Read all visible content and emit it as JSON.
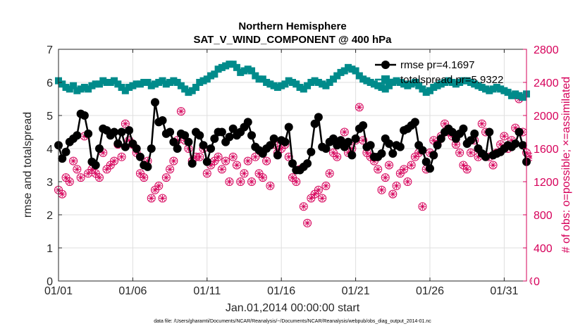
{
  "chart_data": {
    "type": "line",
    "title": "Northern Hemisphere",
    "subtitle": "SAT_V_WIND_COMPONENT @ 400 hPa",
    "xlabel": "Jan.01,2014 00:00:00 start",
    "ylabel_left": "rmse and totalspread",
    "ylabel_right": "# of obs: o=possible; ×=assimilated",
    "footnote": "data file: /Users/gharamti/Documents/NCAR/Reanalysis/~/Documents/NCAR/Reanalysis/webpub/obs_diag_output_2014-01.nc",
    "xlim": [
      0,
      31.5
    ],
    "ylim_left": [
      0,
      7
    ],
    "ylim_right": [
      0,
      2800
    ],
    "grid": true,
    "legend_position": "top-right",
    "x_ticks": [
      {
        "value": 0,
        "label": "01/01"
      },
      {
        "value": 5,
        "label": "01/06"
      },
      {
        "value": 10,
        "label": "01/11"
      },
      {
        "value": 15,
        "label": "01/16"
      },
      {
        "value": 20,
        "label": "01/21"
      },
      {
        "value": 25,
        "label": "01/26"
      },
      {
        "value": 30,
        "label": "01/31"
      }
    ],
    "y_ticks_left": [
      0,
      1,
      2,
      3,
      4,
      5,
      6,
      7
    ],
    "y_ticks_right": [
      0,
      400,
      800,
      1200,
      1600,
      2000,
      2400,
      2800
    ],
    "colors": {
      "rmse": "#000000",
      "totalspread": "#008b8b",
      "obs": "#d6005a"
    },
    "series": [
      {
        "name": "rmse pr=4.1697",
        "axis": "left",
        "marker": "circle",
        "step": 0.25,
        "values": [
          4.1,
          3.7,
          3.9,
          4.2,
          4.3,
          4.4,
          5.05,
          5.0,
          4.45,
          3.6,
          3.5,
          4.0,
          4.6,
          4.55,
          4.4,
          4.5,
          4.15,
          4.5,
          4.05,
          4.55,
          4.15,
          4.0,
          3.75,
          3.5,
          3.45,
          4.0,
          5.4,
          4.8,
          4.85,
          4.45,
          4.5,
          4.2,
          4.0,
          4.45,
          4.4,
          4.2,
          3.55,
          4.5,
          4.4,
          4.1,
          3.6,
          4.0,
          4.3,
          4.5,
          4.5,
          4.2,
          4.35,
          4.6,
          4.4,
          4.5,
          4.65,
          4.8,
          4.4,
          4.05,
          3.95,
          3.85,
          4.0,
          4.1,
          4.3,
          3.8,
          4.25,
          4.2,
          4.65,
          3.55,
          3.35,
          3.35,
          3.45,
          3.55,
          3.9,
          4.75,
          4.95,
          4.05,
          4.0,
          4.2,
          4.3,
          4.1,
          4.25,
          4.05,
          4.2,
          3.8,
          4.3,
          4.6,
          4.7,
          4.05,
          4.1,
          3.75,
          3.75,
          3.85,
          4.3,
          4.15,
          3.85,
          4.1,
          4.05,
          4.55,
          4.6,
          4.7,
          4.8,
          4.1,
          3.95,
          3.6,
          3.4,
          3.8,
          4.1,
          4.3,
          4.5,
          4.6,
          4.5,
          4.3,
          4.45,
          4.6,
          4.15,
          4.25,
          4.45,
          4.0,
          3.85,
          3.75,
          4.5,
          3.8,
          3.85,
          3.9,
          4.0,
          4.1,
          4.05,
          4.15,
          4.5,
          4.1,
          3.6
        ]
      },
      {
        "name": "totalspread pr=5.9322",
        "axis": "left",
        "marker": "square",
        "step": 0.25,
        "values": [
          6.05,
          5.95,
          5.85,
          5.8,
          5.9,
          5.75,
          5.8,
          5.85,
          5.8,
          5.9,
          5.95,
          5.95,
          6.05,
          6.0,
          6.0,
          6.05,
          5.95,
          5.85,
          5.75,
          5.85,
          5.9,
          5.95,
          5.95,
          6.0,
          6.0,
          5.9,
          5.95,
          6.0,
          6.05,
          5.95,
          6.0,
          6.05,
          6.0,
          5.9,
          5.8,
          5.7,
          5.75,
          5.85,
          6.0,
          6.05,
          6.1,
          6.2,
          6.25,
          6.4,
          6.45,
          6.5,
          6.55,
          6.55,
          6.45,
          6.3,
          6.35,
          6.4,
          6.35,
          6.2,
          6.1,
          6.1,
          6.0,
          5.95,
          5.9,
          5.85,
          5.9,
          5.95,
          6.05,
          6.0,
          5.95,
          5.85,
          5.8,
          5.9,
          6.0,
          6.05,
          6.0,
          5.95,
          5.9,
          6.0,
          6.1,
          6.2,
          6.3,
          6.35,
          6.45,
          6.4,
          6.35,
          6.2,
          6.1,
          6.05,
          6.0,
          5.95,
          5.9,
          5.85,
          5.8,
          5.9,
          6.0,
          6.05,
          6.0,
          5.95,
          5.9,
          5.95,
          6.0,
          5.9,
          5.8,
          5.7,
          5.75,
          5.85,
          5.9,
          5.95,
          6.0,
          6.05,
          6.0,
          5.95,
          6.0,
          6.05,
          6.05,
          6.0,
          5.95,
          5.9,
          5.85,
          5.8,
          5.75,
          5.8,
          5.85,
          5.8,
          5.75,
          5.7,
          5.6,
          5.65,
          5.6,
          5.55,
          5.65
        ]
      },
      {
        "name": "# of obs (possible / assimilated)",
        "axis": "right",
        "marker": "circle-star",
        "step": 0.25,
        "values": [
          1100,
          1050,
          1250,
          1200,
          1450,
          1350,
          1250,
          1750,
          1300,
          1350,
          1300,
          1250,
          1550,
          1350,
          1400,
          1450,
          1650,
          1500,
          1900,
          1700,
          1650,
          1550,
          1300,
          1250,
          1450,
          1000,
          1100,
          1150,
          1000,
          1250,
          1350,
          1450,
          1700,
          2050,
          1700,
          1600,
          1450,
          1500,
          1500,
          1600,
          1300,
          1400,
          1450,
          1500,
          1350,
          1450,
          1200,
          1500,
          1400,
          1200,
          1300,
          1450,
          1200,
          1500,
          1300,
          1250,
          1450,
          1150,
          1650,
          1550,
          1600,
          1650,
          1500,
          1250,
          1200,
          1350,
          900,
          700,
          1000,
          1050,
          1100,
          1000,
          1150,
          1300,
          1550,
          1500,
          1700,
          1800,
          1550,
          1600,
          1700,
          2100,
          1700,
          1550,
          1500,
          1450,
          1350,
          1100,
          1250,
          1400,
          1050,
          1150,
          1300,
          1350,
          1200,
          1400,
          1500,
          1550,
          900,
          1350,
          1550,
          1700,
          1650,
          1750,
          1900,
          1800,
          1750,
          1650,
          1550,
          1400,
          1350,
          1550,
          1700,
          1500,
          1900,
          1800,
          1500,
          1400,
          1550,
          1650,
          1750,
          1600,
          1700,
          1850,
          2200,
          1800,
          1550,
          1500,
          0
        ]
      }
    ]
  }
}
